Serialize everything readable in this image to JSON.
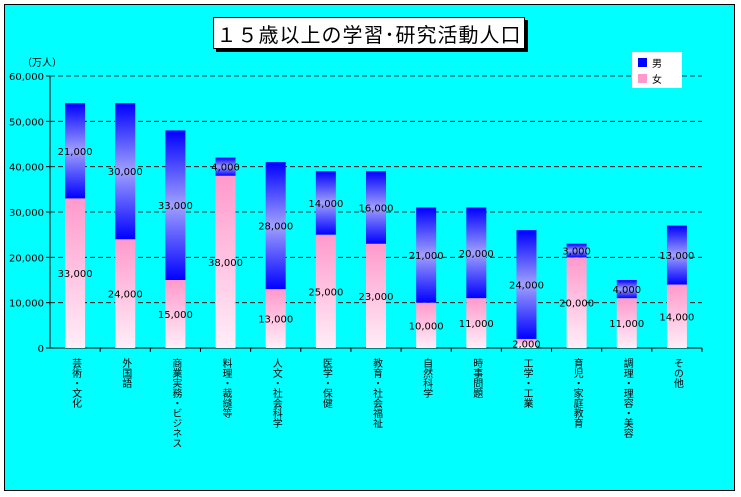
{
  "chart_data": {
    "type": "bar",
    "stacked": true,
    "title": "１５歳以上の学習･研究活動人口",
    "unit_label": "（万人）",
    "ylim": [
      0,
      60000
    ],
    "yticks": [
      "0",
      "10,000",
      "20,000",
      "30,000",
      "40,000",
      "50,000",
      "60,000"
    ],
    "grid": true,
    "legend_position": "top-right",
    "categories": [
      "芸術・文化",
      "外国語",
      "商業実務・ビジネス",
      "料理・裁縫等",
      "人文・社会科学",
      "医学・保健",
      "教育・社会福祉",
      "自然科学",
      "時事問題",
      "工学・工業",
      "育児・家庭教育",
      "調理・理容・美容",
      "その他"
    ],
    "series": [
      {
        "name": "女",
        "color": "#ff99cc",
        "values": [
          33000,
          24000,
          15000,
          38000,
          13000,
          25000,
          23000,
          10000,
          11000,
          2000,
          20000,
          11000,
          14000
        ],
        "labels": [
          "33,000",
          "24,000",
          "15,000",
          "38,000",
          "13,000",
          "25,000",
          "23,000",
          "10,000",
          "11,000",
          "2,000",
          "20,000",
          "11,000",
          "14,000"
        ]
      },
      {
        "name": "男",
        "color": "#0000ff",
        "values": [
          21000,
          30000,
          33000,
          4000,
          28000,
          14000,
          16000,
          21000,
          20000,
          24000,
          3000,
          4000,
          13000
        ],
        "labels": [
          "21,000",
          "30,000",
          "33,000",
          "4,000",
          "28,000",
          "14,000",
          "16,000",
          "21,000",
          "20,000",
          "24,000",
          "3,000",
          "4,000",
          "13,000"
        ]
      }
    ]
  }
}
